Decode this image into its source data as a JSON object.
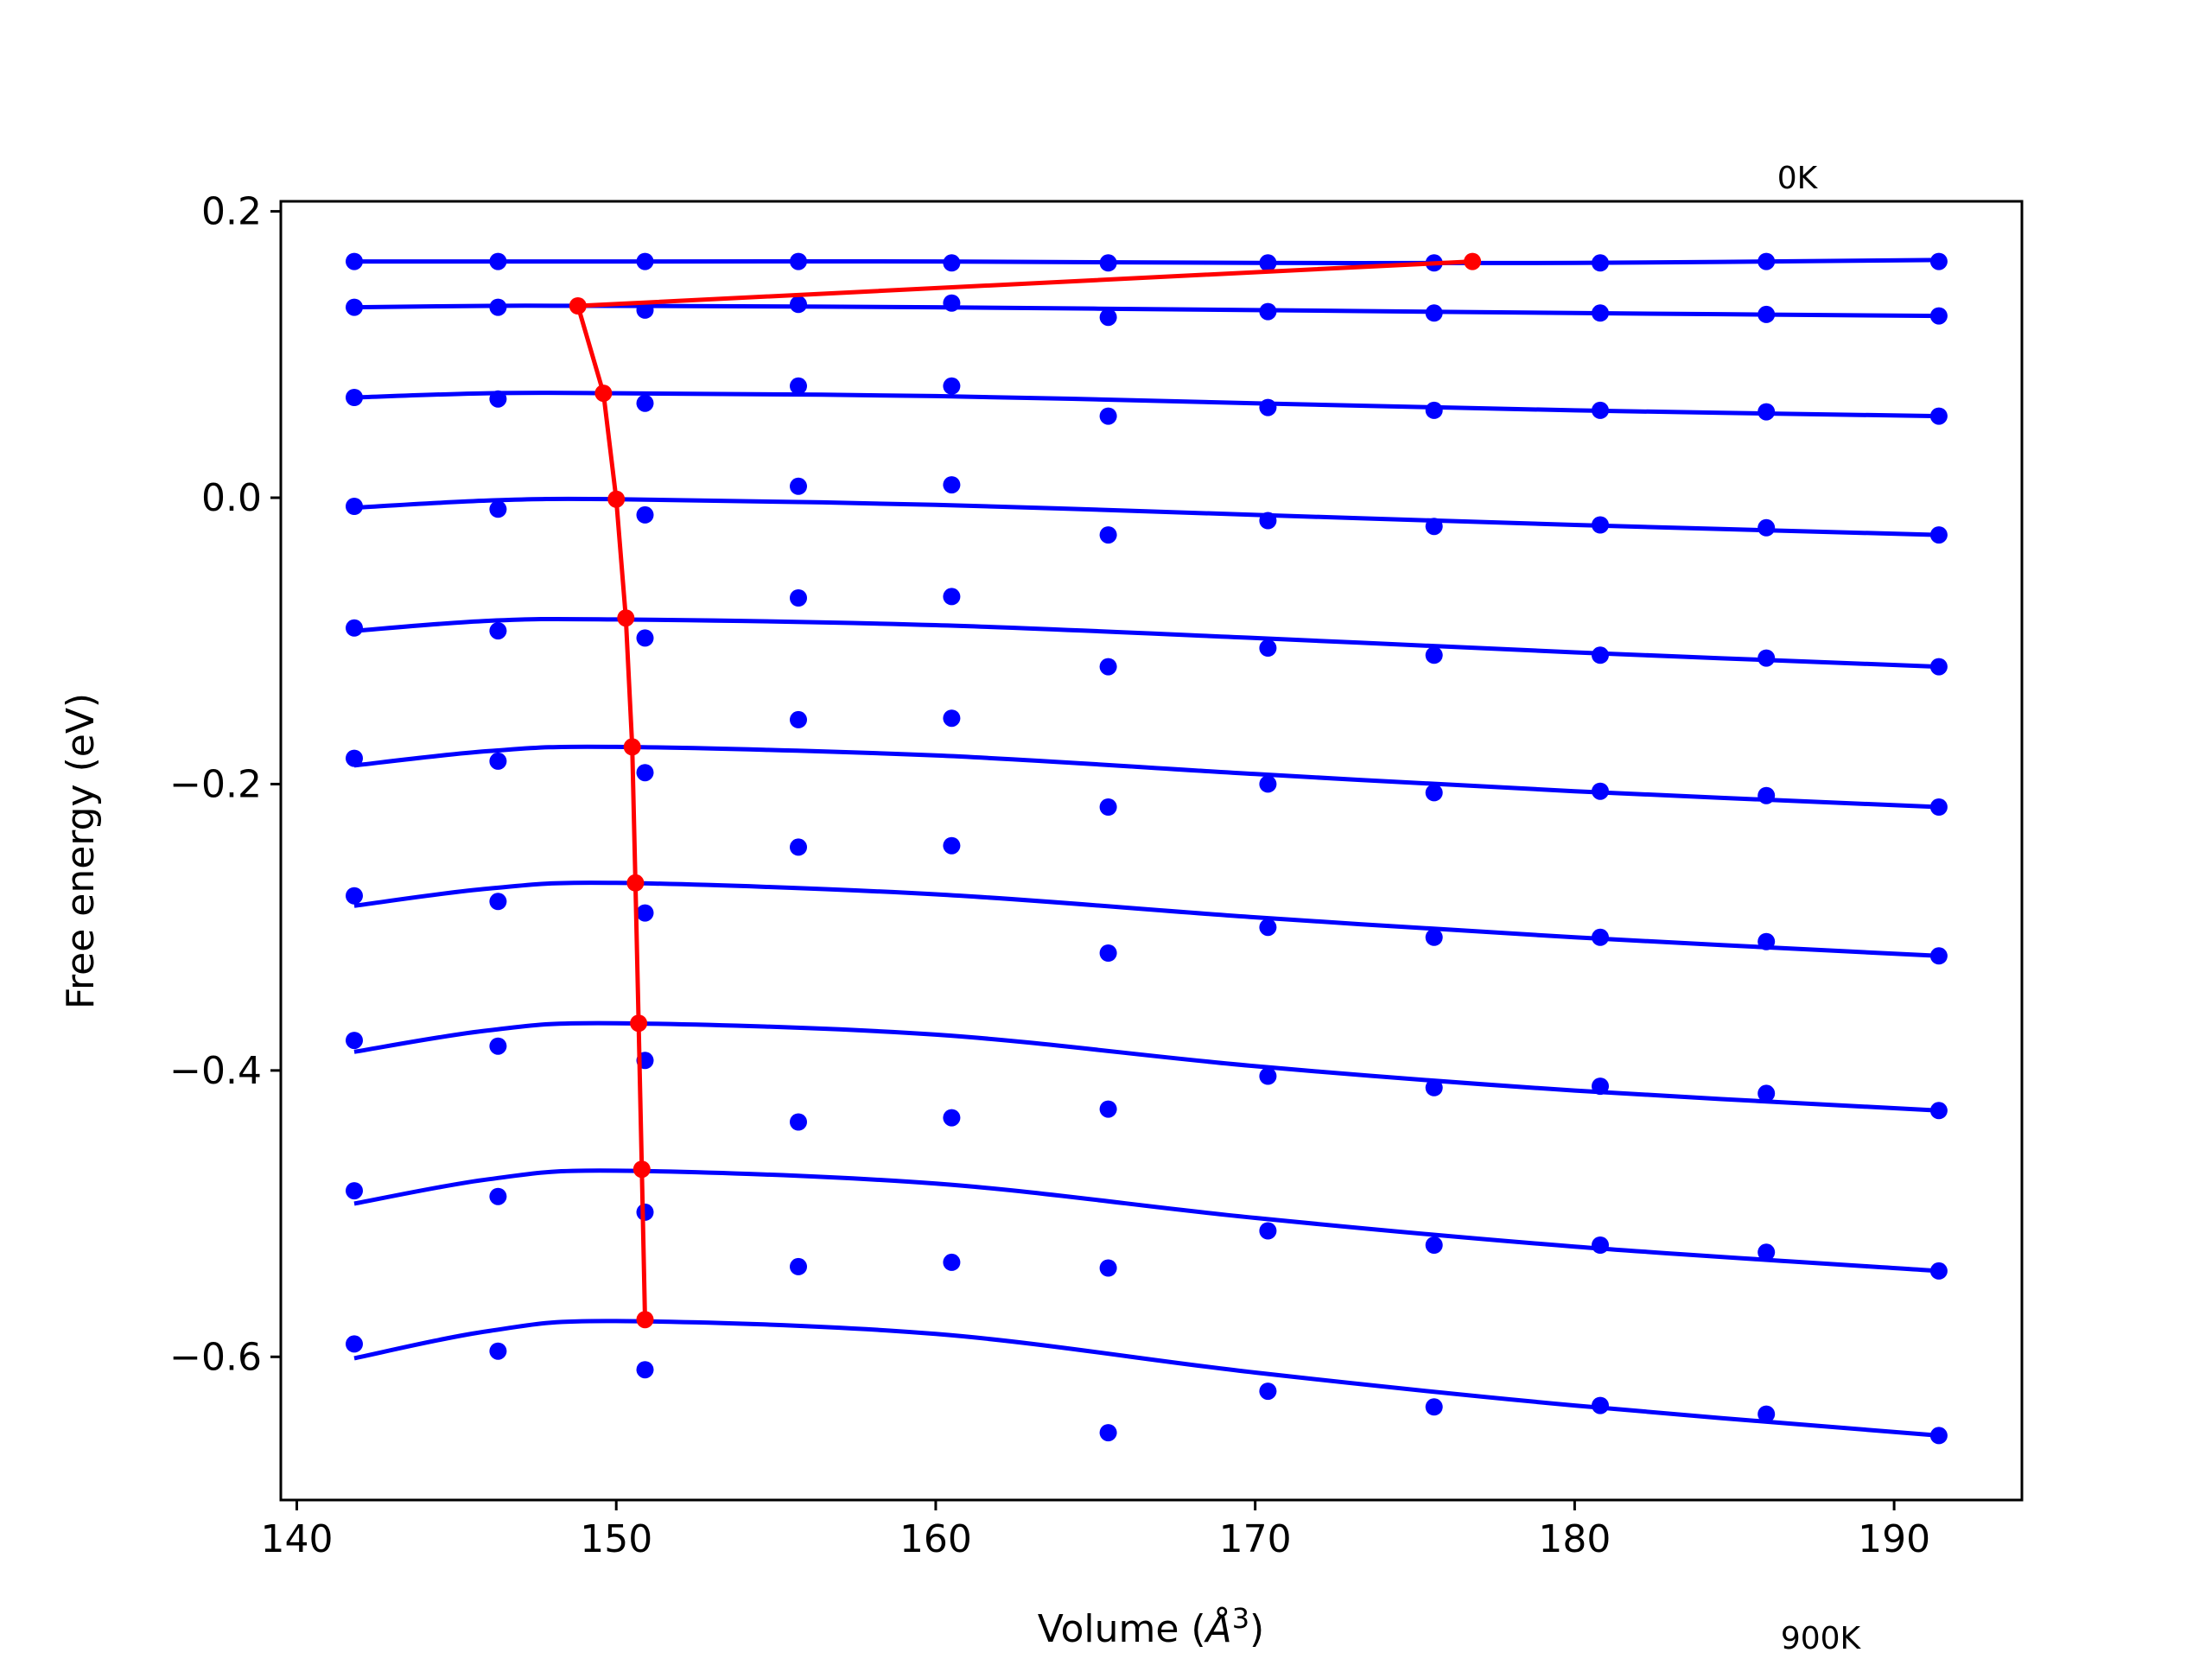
{
  "chart_data": {
    "type": "scatter",
    "title": "",
    "xlabel_prefix": "Volume (",
    "xlabel_symbol": "Å",
    "xlabel_exponent": "3",
    "xlabel_suffix": ")",
    "ylabel": "Free energy (eV)",
    "xlim": [
      139.5,
      194
    ],
    "ylim": [
      -0.7,
      0.207
    ],
    "xticks": [
      140,
      150,
      160,
      170,
      180,
      190
    ],
    "xtick_labels": [
      "140",
      "150",
      "160",
      "170",
      "180",
      "190"
    ],
    "yticks": [
      -0.6,
      -0.4,
      -0.2,
      0.0,
      0.2
    ],
    "ytick_labels": [
      "−0.6",
      "−0.4",
      "−0.2",
      "0.0",
      "0.2"
    ],
    "annotations": [
      {
        "text": "0K",
        "anchor": "top-right above first curve"
      },
      {
        "text": "900K",
        "anchor": "bottom-right below last curve"
      }
    ],
    "colors": {
      "points": "#0000ff",
      "fit_curves": "#0000ff",
      "minimum_path": "#ff0000"
    },
    "x_volumes": [
      141.8,
      146.3,
      150.9,
      155.7,
      160.5,
      165.4,
      170.4,
      175.6,
      180.8,
      186.0,
      191.4
    ],
    "series": [
      {
        "points": [
          0.165,
          0.165,
          0.165,
          0.165,
          0.164,
          0.164,
          0.164,
          0.164,
          0.164,
          0.165,
          0.165
        ],
        "fit": [
          [
            141.8,
            0.165
          ],
          [
            150,
            0.165
          ],
          [
            160,
            0.165
          ],
          [
            170,
            0.164
          ],
          [
            180,
            0.164
          ],
          [
            191.4,
            0.166
          ]
        ]
      },
      {
        "points": [
          0.133,
          0.133,
          0.131,
          0.135,
          0.136,
          0.126,
          0.13,
          0.129,
          0.129,
          0.128,
          0.127
        ],
        "fit": [
          [
            141.8,
            0.133
          ],
          [
            146,
            0.134
          ],
          [
            150,
            0.134
          ],
          [
            160,
            0.133
          ],
          [
            170,
            0.131
          ],
          [
            180,
            0.129
          ],
          [
            191.4,
            0.127
          ]
        ]
      },
      {
        "points": [
          0.07,
          0.069,
          0.066,
          0.078,
          0.078,
          0.057,
          0.063,
          0.061,
          0.061,
          0.06,
          0.057
        ],
        "fit": [
          [
            141.8,
            0.07
          ],
          [
            146,
            0.073
          ],
          [
            150,
            0.073
          ],
          [
            160,
            0.071
          ],
          [
            170,
            0.066
          ],
          [
            180,
            0.061
          ],
          [
            191.4,
            0.057
          ]
        ]
      },
      {
        "points": [
          -0.006,
          -0.008,
          -0.012,
          0.008,
          0.009,
          -0.026,
          -0.016,
          -0.02,
          -0.019,
          -0.021,
          -0.026
        ],
        "fit": [
          [
            141.8,
            -0.007
          ],
          [
            146,
            -0.002
          ],
          [
            150,
            -0.001
          ],
          [
            160,
            -0.005
          ],
          [
            170,
            -0.012
          ],
          [
            180,
            -0.019
          ],
          [
            191.4,
            -0.026
          ]
        ]
      },
      {
        "points": [
          -0.091,
          -0.093,
          -0.098,
          -0.07,
          -0.069,
          -0.118,
          -0.105,
          -0.11,
          -0.11,
          -0.112,
          -0.118
        ],
        "fit": [
          [
            141.8,
            -0.093
          ],
          [
            146,
            -0.086
          ],
          [
            150,
            -0.085
          ],
          [
            160,
            -0.089
          ],
          [
            170,
            -0.098
          ],
          [
            180,
            -0.108
          ],
          [
            191.4,
            -0.118
          ]
        ]
      },
      {
        "points": [
          -0.182,
          -0.184,
          -0.192,
          -0.155,
          -0.154,
          -0.216,
          -0.2,
          -0.206,
          -0.205,
          -0.208,
          -0.216
        ],
        "fit": [
          [
            141.8,
            -0.187
          ],
          [
            146,
            -0.177
          ],
          [
            150,
            -0.174
          ],
          [
            160,
            -0.18
          ],
          [
            170,
            -0.193
          ],
          [
            180,
            -0.205
          ],
          [
            191.4,
            -0.216
          ]
        ]
      },
      {
        "points": [
          -0.278,
          -0.282,
          -0.29,
          -0.244,
          -0.243,
          -0.318,
          -0.3,
          -0.307,
          -0.307,
          -0.31,
          -0.32
        ],
        "fit": [
          [
            141.8,
            -0.285
          ],
          [
            146,
            -0.273
          ],
          [
            150,
            -0.269
          ],
          [
            160,
            -0.277
          ],
          [
            170,
            -0.293
          ],
          [
            180,
            -0.307
          ],
          [
            191.4,
            -0.32
          ]
        ]
      },
      {
        "points": [
          -0.379,
          -0.383,
          -0.393,
          -0.436,
          -0.433,
          -0.427,
          -0.404,
          -0.412,
          -0.411,
          -0.416,
          -0.428
        ],
        "fit": [
          [
            141.8,
            -0.387
          ],
          [
            146,
            -0.372
          ],
          [
            150,
            -0.367
          ],
          [
            160,
            -0.375
          ],
          [
            170,
            -0.397
          ],
          [
            180,
            -0.414
          ],
          [
            191.4,
            -0.428
          ]
        ]
      },
      {
        "points": [
          -0.484,
          -0.488,
          -0.499,
          -0.537,
          -0.534,
          -0.538,
          -0.512,
          -0.522,
          -0.522,
          -0.527,
          -0.54
        ],
        "fit": [
          [
            141.8,
            -0.493
          ],
          [
            146,
            -0.476
          ],
          [
            150,
            -0.47
          ],
          [
            160,
            -0.479
          ],
          [
            170,
            -0.503
          ],
          [
            180,
            -0.523
          ],
          [
            191.4,
            -0.54
          ]
        ]
      },
      {
        "points": [
          -0.591,
          -0.596,
          -0.609,
          null,
          null,
          -0.653,
          -0.624,
          -0.635,
          -0.634,
          -0.64,
          -0.655
        ],
        "fit": [
          [
            141.8,
            -0.601
          ],
          [
            146,
            -0.582
          ],
          [
            150,
            -0.575
          ],
          [
            160,
            -0.584
          ],
          [
            170,
            -0.611
          ],
          [
            180,
            -0.634
          ],
          [
            191.4,
            -0.655
          ]
        ]
      }
    ],
    "minimum_path": {
      "x": [
        176.8,
        148.8,
        149.6,
        150.0,
        150.3,
        150.5,
        150.6,
        150.7,
        150.8,
        150.9
      ],
      "y": [
        0.165,
        0.134,
        0.073,
        -0.001,
        -0.084,
        -0.174,
        -0.269,
        -0.367,
        -0.469,
        -0.574
      ]
    }
  }
}
